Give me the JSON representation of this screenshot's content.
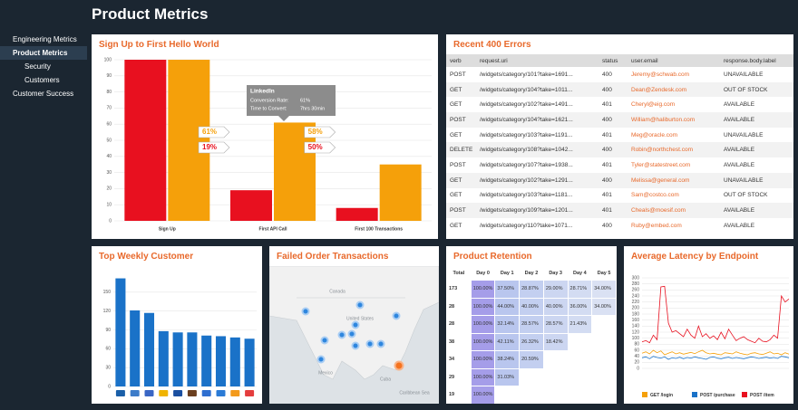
{
  "header": {
    "title": "Product Metrics"
  },
  "sidebar": {
    "items": [
      "Engineering Metrics",
      "Product Metrics",
      "Security",
      "Customers",
      "Customer Success"
    ]
  },
  "chart_data": [
    {
      "type": "bar",
      "title": "Sign Up to First Hello World",
      "categories": [
        "Sign Up",
        "First API Call",
        "First 100 Transactions"
      ],
      "series": [
        {
          "color": "#e8101f",
          "values": [
            100,
            19,
            8
          ]
        },
        {
          "color": "#f5a00a",
          "values": [
            100,
            61,
            35
          ]
        }
      ],
      "ylim": [
        0,
        100
      ],
      "yticks": [
        0,
        10,
        20,
        30,
        40,
        50,
        60,
        70,
        80,
        90,
        100
      ],
      "grid": true,
      "annotations": [
        "61%",
        "19%",
        "58%",
        "50%"
      ],
      "tooltip": {
        "title": "LinkedIn",
        "lines": [
          [
            "Conversion Rate:",
            "61%"
          ],
          [
            "Time to Convert:",
            "7hrs 30min"
          ]
        ]
      }
    },
    {
      "type": "bar",
      "title": "Top Weekly Customer",
      "values": [
        172,
        121,
        117,
        88,
        86,
        86,
        81,
        80,
        78,
        76
      ],
      "color": "#1a72c8",
      "ylim": [
        0,
        180
      ],
      "yticks": [
        0,
        30,
        60,
        90,
        120,
        150
      ],
      "grid": true
    },
    {
      "type": "line",
      "title": "Average Latency by Endpoint",
      "ylim": [
        0,
        300
      ],
      "yticks": [
        0,
        20,
        40,
        60,
        80,
        100,
        120,
        140,
        160,
        180,
        200,
        220,
        240,
        260,
        280,
        300
      ],
      "grid": true,
      "series": [
        {
          "name": "GET /login",
          "color": "#f5a00a",
          "values": [
            50,
            55,
            48,
            60,
            52,
            58,
            45,
            50,
            55,
            48,
            52,
            47,
            50,
            53,
            49,
            55,
            60,
            52,
            48,
            50,
            47,
            45,
            52,
            50,
            48,
            55,
            50,
            47,
            45,
            50,
            52,
            48,
            46,
            50,
            55,
            48,
            50,
            45,
            52,
            47
          ]
        },
        {
          "name": "POST /purchase",
          "color": "#1a72c8",
          "values": [
            35,
            38,
            32,
            40,
            36,
            34,
            38,
            30,
            35,
            33,
            37,
            32,
            36,
            34,
            38,
            35,
            33,
            30,
            36,
            38,
            34,
            32,
            35,
            37,
            33,
            36,
            34,
            32,
            35,
            38,
            36,
            33,
            35,
            37,
            34,
            36,
            33,
            40,
            38,
            35
          ]
        },
        {
          "name": "POST /item",
          "color": "#e8101f",
          "values": [
            88,
            92,
            85,
            110,
            95,
            270,
            272,
            150,
            120,
            125,
            115,
            105,
            130,
            110,
            100,
            140,
            105,
            115,
            100,
            108,
            95,
            120,
            98,
            130,
            110,
            92,
            100,
            105,
            95,
            90,
            85,
            100,
            90,
            88,
            95,
            110,
            100,
            240,
            220,
            230
          ]
        }
      ]
    }
  ],
  "errors": {
    "title": "Recent 400 Errors",
    "columns": [
      "verb",
      "request.uri",
      "status",
      "user.email",
      "response.body.label"
    ],
    "rows": [
      [
        "POST",
        "/widgets/category/101?take=1691...",
        "400",
        "Jeremy@schwab.com",
        "UNAVAILABLE"
      ],
      [
        "GET",
        "/widgets/category/104?take=1011...",
        "400",
        "Dean@Zendesk.com",
        "OUT OF STOCK"
      ],
      [
        "GET",
        "/widgets/category/102?take=1491...",
        "401",
        "Cheryl@eig.com",
        "AVAILABLE"
      ],
      [
        "POST",
        "/widgets/category/104?take=1621...",
        "400",
        "William@haliburton.com",
        "AVAILABLE"
      ],
      [
        "GET",
        "/widgets/category/103?take=1191...",
        "401",
        "Meg@oracle.com",
        "UNAVAILABLE"
      ],
      [
        "DELETE",
        "/widgets/category/108?take=1042...",
        "400",
        "Robin@northchest.com",
        "AVAILABLE"
      ],
      [
        "POST",
        "/widgets/category/107?take=1938...",
        "401",
        "Tyler@statestreet.com",
        "AVAILABLE"
      ],
      [
        "GET",
        "/widgets/category/102?take=1291...",
        "400",
        "Melissa@general.com",
        "UNAVAILABLE"
      ],
      [
        "GET",
        "/widgets/category/103?take=1181...",
        "401",
        "Sam@costco.com",
        "OUT OF STOCK"
      ],
      [
        "POST",
        "/widgets/category/109?take=1201...",
        "401",
        "Cheals@moesif.com",
        "AVAILABLE"
      ],
      [
        "GET",
        "/widgets/category/110?take=1071...",
        "400",
        "Ruby@embed.com",
        "AVAILABLE"
      ]
    ]
  },
  "map": {
    "title": "Failed Order Transactions",
    "labels": [
      "Canada",
      "United States",
      "Mexico",
      "Cuba",
      "Caribbean Sea"
    ]
  },
  "retention": {
    "title": "Product Retention",
    "columns": [
      "Total",
      "Day 0",
      "Day 1",
      "Day 2",
      "Day 3",
      "Day 4",
      "Day 5"
    ],
    "rows": [
      [
        "173",
        "100.00%",
        "37.50%",
        "28.87%",
        "29.00%",
        "28.71%",
        "34.00%"
      ],
      [
        "28",
        "100.00%",
        "44.00%",
        "40.00%",
        "40.00%",
        "36.00%",
        "34.00%"
      ],
      [
        "28",
        "100.00%",
        "32.14%",
        "28.57%",
        "28.57%",
        "21.43%"
      ],
      [
        "38",
        "100.00%",
        "42.11%",
        "26.32%",
        "18.42%"
      ],
      [
        "34",
        "100.00%",
        "38.24%",
        "20.59%"
      ],
      [
        "29",
        "100.00%",
        "31.03%"
      ],
      [
        "19",
        "100.00%"
      ]
    ]
  }
}
